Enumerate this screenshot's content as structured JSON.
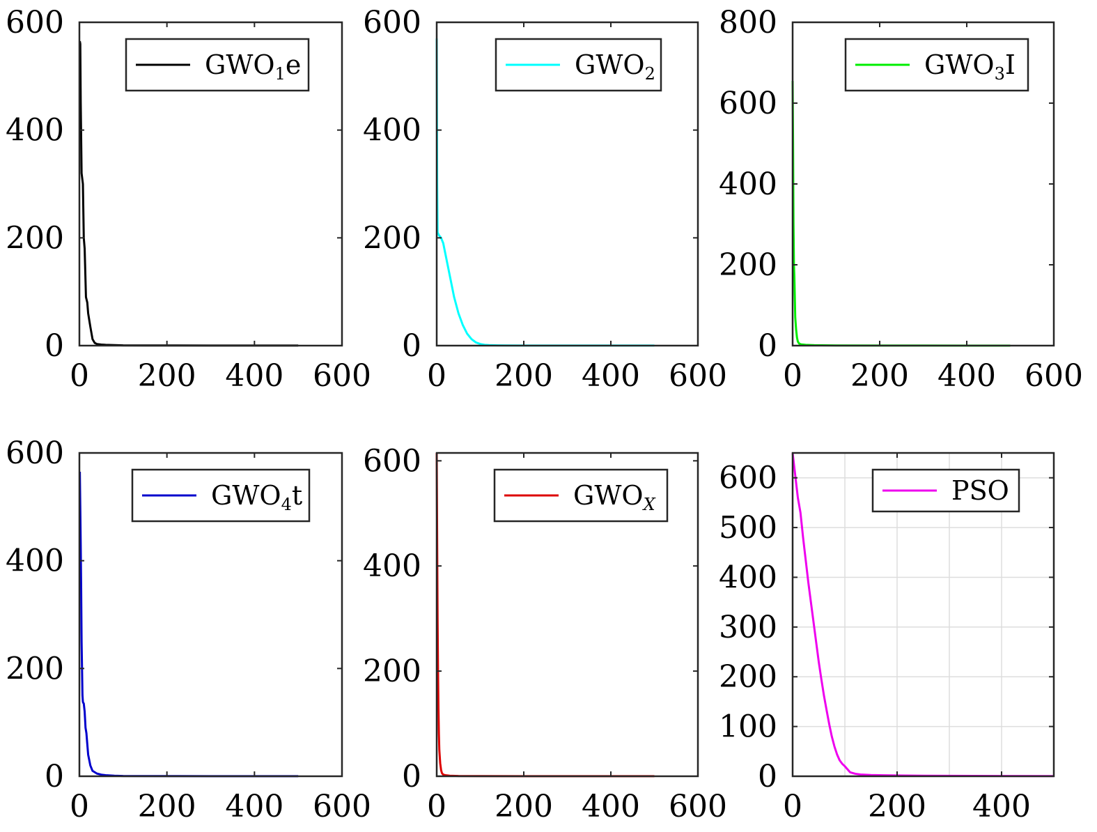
{
  "chart_data": [
    {
      "type": "line",
      "xlim": [
        0,
        600
      ],
      "ylim": [
        0,
        600
      ],
      "xticks": [
        0,
        200,
        400,
        600
      ],
      "yticks": [
        0,
        200,
        400,
        600
      ],
      "grid": false,
      "legend_position": "top-right",
      "series": [
        {
          "legend": {
            "base": "GWO",
            "sub": "1",
            "suffix": "e",
            "sub_italic": false
          },
          "color": "#000000",
          "x": [
            1,
            2,
            3,
            5,
            8,
            10,
            12,
            15,
            18,
            20,
            25,
            30,
            35,
            40,
            50,
            60,
            80,
            100,
            150,
            200,
            300,
            400,
            500
          ],
          "y": [
            565,
            560,
            450,
            320,
            300,
            200,
            180,
            90,
            80,
            60,
            35,
            12,
            5,
            3,
            2,
            1.5,
            1,
            0.5,
            0.4,
            0.3,
            0.2,
            0.1,
            0.1
          ]
        }
      ]
    },
    {
      "type": "line",
      "xlim": [
        0,
        600
      ],
      "ylim": [
        0,
        600
      ],
      "xticks": [
        0,
        200,
        400,
        600
      ],
      "yticks": [
        0,
        200,
        400,
        600
      ],
      "grid": false,
      "legend_position": "top-right",
      "series": [
        {
          "legend": {
            "base": "GWO",
            "sub": "2",
            "suffix": "",
            "sub_italic": false
          },
          "color": "#00ffff",
          "x": [
            0,
            1,
            2,
            5,
            10,
            15,
            20,
            25,
            30,
            40,
            50,
            60,
            70,
            80,
            90,
            100,
            110,
            120,
            140,
            160,
            200,
            300,
            400,
            500
          ],
          "y": [
            570,
            300,
            210,
            205,
            200,
            190,
            170,
            150,
            130,
            90,
            60,
            38,
            22,
            12,
            6,
            3,
            1.5,
            1,
            0.5,
            0.3,
            0.2,
            0.1,
            0.1,
            0.1
          ]
        }
      ]
    },
    {
      "type": "line",
      "xlim": [
        0,
        600
      ],
      "ylim": [
        0,
        800
      ],
      "xticks": [
        0,
        200,
        400,
        600
      ],
      "yticks": [
        0,
        200,
        400,
        600,
        800
      ],
      "grid": false,
      "legend_position": "top-right",
      "series": [
        {
          "legend": {
            "base": "GWO",
            "sub": "3",
            "suffix": "I",
            "sub_italic": false
          },
          "color": "#00ee00",
          "x": [
            0,
            1,
            2,
            3,
            4,
            5,
            6,
            8,
            10,
            12,
            15,
            20,
            30,
            50,
            100,
            200,
            300,
            400,
            500
          ],
          "y": [
            655,
            500,
            300,
            200,
            170,
            120,
            70,
            40,
            20,
            10,
            5,
            3,
            2,
            1,
            0.5,
            0.3,
            0.2,
            0.1,
            0.1
          ]
        }
      ]
    },
    {
      "type": "line",
      "xlim": [
        0,
        600
      ],
      "ylim": [
        0,
        600
      ],
      "xticks": [
        0,
        200,
        400,
        600
      ],
      "yticks": [
        0,
        200,
        400,
        600
      ],
      "grid": false,
      "legend_position": "top-right",
      "series": [
        {
          "legend": {
            "base": "GWO",
            "sub": "4",
            "suffix": "t",
            "sub_italic": false
          },
          "color": "#0000cc",
          "x": [
            1,
            2,
            3,
            4,
            5,
            6,
            7,
            8,
            9,
            10,
            12,
            14,
            16,
            18,
            20,
            25,
            30,
            40,
            50,
            60,
            80,
            100,
            200,
            300,
            400,
            500
          ],
          "y": [
            565,
            500,
            430,
            350,
            250,
            200,
            150,
            138,
            136,
            135,
            120,
            90,
            80,
            60,
            40,
            20,
            10,
            5,
            3,
            2,
            1,
            0.5,
            0.3,
            0.2,
            0.1,
            0.1
          ]
        }
      ]
    },
    {
      "type": "line",
      "xlim": [
        0,
        600
      ],
      "ylim": [
        0,
        615
      ],
      "xticks": [
        0,
        200,
        400,
        600
      ],
      "yticks": [
        0,
        200,
        400,
        600
      ],
      "grid": false,
      "legend_position": "top-right",
      "series": [
        {
          "legend": {
            "base": "GWO",
            "sub": "X",
            "suffix": "",
            "sub_italic": true
          },
          "color": "#dd0000",
          "x": [
            0,
            1,
            2,
            3,
            4,
            5,
            6,
            8,
            10,
            12,
            15,
            20,
            30,
            50,
            100,
            200,
            300,
            400,
            500
          ],
          "y": [
            615,
            450,
            300,
            200,
            130,
            80,
            50,
            25,
            12,
            6,
            3,
            2,
            1,
            0.5,
            0.3,
            0.2,
            0.1,
            0.1,
            0.1
          ]
        }
      ]
    },
    {
      "type": "line",
      "xlim": [
        0,
        500
      ],
      "ylim": [
        0,
        650
      ],
      "xticks": [
        0,
        200,
        400
      ],
      "yticks": [
        0,
        100,
        200,
        300,
        400,
        500,
        600
      ],
      "grid": true,
      "legend_position": "top-right",
      "series": [
        {
          "legend": {
            "base": "PSO",
            "sub": "",
            "suffix": "",
            "sub_italic": false
          },
          "color": "#ee00ee",
          "x": [
            0,
            5,
            10,
            15,
            20,
            25,
            30,
            35,
            40,
            45,
            50,
            55,
            60,
            65,
            70,
            75,
            80,
            85,
            90,
            95,
            100,
            105,
            110,
            120,
            130,
            140,
            150,
            175,
            200,
            250,
            300,
            400,
            500
          ],
          "y": [
            650,
            605,
            560,
            530,
            480,
            435,
            390,
            350,
            310,
            270,
            230,
            195,
            162,
            133,
            105,
            80,
            60,
            44,
            32,
            25,
            20,
            14,
            8,
            5,
            3.5,
            3,
            2.5,
            2,
            1.5,
            1,
            0.8,
            0.5,
            0.3
          ]
        }
      ]
    }
  ]
}
